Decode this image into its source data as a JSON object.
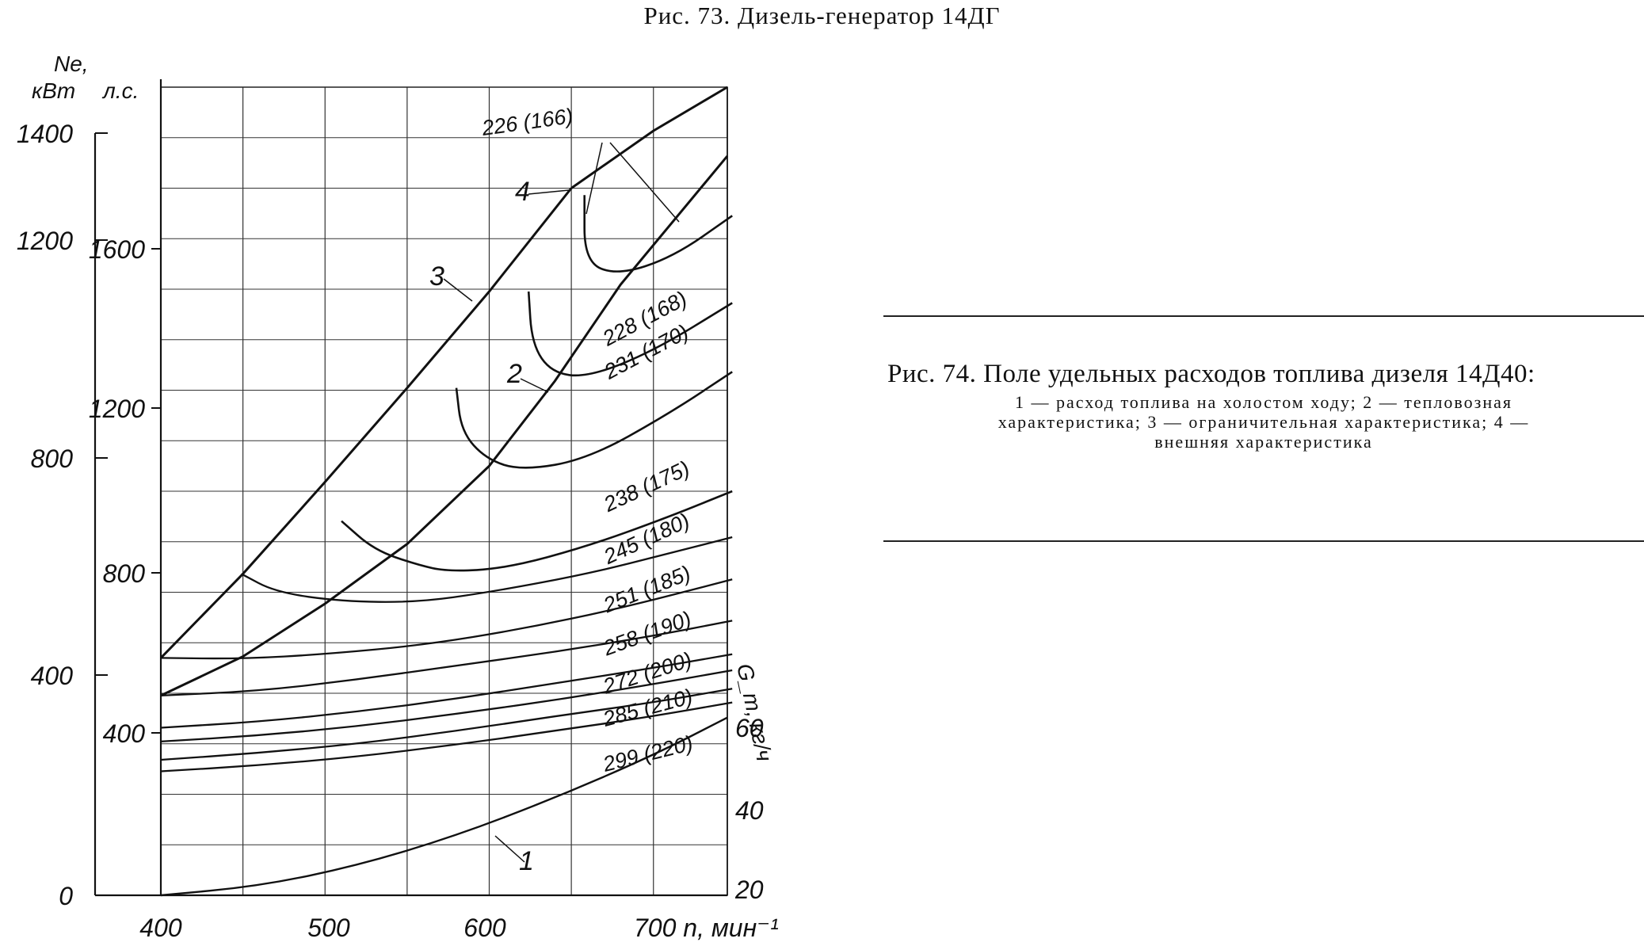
{
  "top_caption": "Рис. 73. Дизель-генератор 14ДГ",
  "figure": {
    "title": "Рис. 74. Поле удельных расходов топлива дизеля 14Д40:",
    "legend_lines": [
      "1 — расход топлива на холостом ходу; 2 — тепловозная",
      "характеристика; 3 — ограничительная характеристика; 4 —",
      "внешняя характеристика"
    ]
  },
  "chart_data": {
    "type": "line",
    "x": {
      "label": "n, мин⁻¹",
      "range": [
        400,
        750
      ],
      "ticks": [
        400,
        500,
        600,
        700
      ],
      "tick_labels": [
        "400",
        "500",
        "600",
        "700 n, мин⁻¹"
      ]
    },
    "y_kw": {
      "label_top": "Ne,",
      "unit": "кВт",
      "range": [
        0,
        1500
      ],
      "ticks": [
        0,
        400,
        800,
        1200,
        1400
      ],
      "tick_labels": [
        "0",
        "400",
        "800",
        "1200",
        "1400"
      ]
    },
    "y_hp": {
      "unit": "л.с.",
      "ticks": [
        400,
        800,
        1200,
        1600
      ],
      "tick_labels": [
        "400",
        "800",
        "1200",
        "1600"
      ]
    },
    "y_fuel": {
      "label": "G_т, кг/ч",
      "ticks": [
        20,
        40,
        60
      ],
      "tick_labels": [
        "20",
        "40",
        "60"
      ]
    },
    "grid": true,
    "series": [
      {
        "name": "1",
        "points": [
          [
            400,
            0
          ],
          [
            460,
            20
          ],
          [
            520,
            65
          ],
          [
            580,
            130
          ],
          [
            640,
            212
          ],
          [
            700,
            305
          ],
          [
            745,
            387
          ]
        ]
      },
      {
        "name": "2",
        "points": [
          [
            400,
            435
          ],
          [
            450,
            520
          ],
          [
            500,
            635
          ],
          [
            550,
            765
          ],
          [
            600,
            935
          ],
          [
            640,
            1120
          ],
          [
            680,
            1330
          ],
          [
            745,
            1610
          ]
        ]
      },
      {
        "name": "3",
        "points": [
          [
            400,
            517
          ],
          [
            450,
            700
          ],
          [
            500,
            900
          ],
          [
            550,
            1105
          ],
          [
            600,
            1315
          ],
          [
            650,
            1540
          ]
        ]
      },
      {
        "name": "4",
        "points": [
          [
            650,
            1540
          ],
          [
            700,
            1665
          ],
          [
            745,
            1760
          ]
        ]
      }
    ],
    "contours": [
      {
        "label": "226 (166)",
        "points": [
          [
            658,
            1525
          ],
          [
            658,
            1380
          ],
          [
            678,
            1350
          ],
          [
            712,
            1390
          ],
          [
            748,
            1480
          ]
        ]
      },
      {
        "label": "228 (168)",
        "points": [
          [
            624,
            1315
          ],
          [
            626,
            1200
          ],
          [
            638,
            1138
          ],
          [
            660,
            1128
          ],
          [
            700,
            1185
          ],
          [
            748,
            1290
          ]
        ]
      },
      {
        "label": "231 (170)",
        "points": [
          [
            580,
            1105
          ],
          [
            583,
            1010
          ],
          [
            598,
            950
          ],
          [
            620,
            925
          ],
          [
            660,
            950
          ],
          [
            710,
            1050
          ],
          [
            748,
            1140
          ]
        ]
      },
      {
        "label": "238 (175)",
        "points": [
          [
            510,
            815
          ],
          [
            530,
            752
          ],
          [
            556,
            720
          ],
          [
            575,
            705
          ],
          [
            610,
            712
          ],
          [
            660,
            760
          ],
          [
            710,
            825
          ],
          [
            748,
            880
          ]
        ]
      },
      {
        "label": "245 (180)",
        "points": [
          [
            449,
            700
          ],
          [
            470,
            660
          ],
          [
            510,
            640
          ],
          [
            556,
            638
          ],
          [
            600,
            660
          ],
          [
            660,
            700
          ],
          [
            710,
            745
          ],
          [
            748,
            780
          ]
        ]
      },
      {
        "label": "251 (185)",
        "points": [
          [
            400,
            517
          ],
          [
            450,
            515
          ],
          [
            500,
            525
          ],
          [
            560,
            545
          ],
          [
            620,
            580
          ],
          [
            680,
            625
          ],
          [
            748,
            688
          ]
        ]
      },
      {
        "label": "258 (190)",
        "points": [
          [
            400,
            435
          ],
          [
            460,
            445
          ],
          [
            520,
            470
          ],
          [
            580,
            500
          ],
          [
            640,
            530
          ],
          [
            700,
            565
          ],
          [
            748,
            598
          ]
        ]
      },
      {
        "label": "272 (200)",
        "points": [
          [
            400,
            365
          ],
          [
            460,
            378
          ],
          [
            520,
            400
          ],
          [
            580,
            428
          ],
          [
            640,
            462
          ],
          [
            700,
            495
          ],
          [
            748,
            525
          ]
        ]
      },
      {
        "label": "285 (210)",
        "points": [
          [
            400,
            335
          ],
          [
            460,
            348
          ],
          [
            520,
            368
          ],
          [
            580,
            395
          ],
          [
            640,
            425
          ],
          [
            700,
            460
          ],
          [
            748,
            490
          ]
        ]
      },
      {
        "label": "299 (220)",
        "points": [
          [
            400,
            295
          ],
          [
            460,
            310
          ],
          [
            520,
            330
          ],
          [
            580,
            358
          ],
          [
            640,
            390
          ],
          [
            700,
            420
          ],
          [
            748,
            450
          ]
        ]
      },
      {
        "label": "",
        "points": [
          [
            400,
            270
          ],
          [
            460,
            283
          ],
          [
            520,
            302
          ],
          [
            580,
            328
          ],
          [
            640,
            358
          ],
          [
            700,
            390
          ],
          [
            748,
            420
          ]
        ]
      }
    ]
  }
}
